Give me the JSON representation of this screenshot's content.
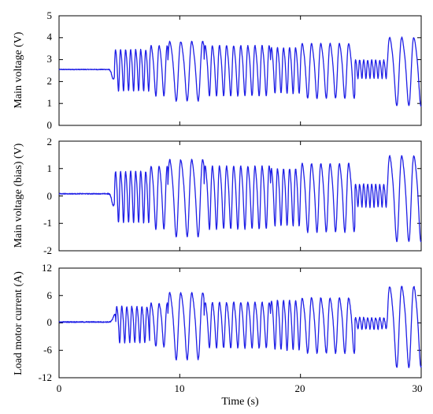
{
  "colors": {
    "series": "#1f1fe6",
    "axis": "#000000"
  },
  "chart_data": [
    {
      "type": "line",
      "ylabel": "Main voltage (V)",
      "xlabel": "",
      "xlim": [
        0,
        30
      ],
      "ylim": [
        0,
        5
      ],
      "xticks": [
        0,
        10,
        20,
        30
      ],
      "yticks": [
        0,
        1,
        2,
        3,
        4,
        5
      ],
      "ytick_labels": [
        "0",
        "1",
        "2",
        "3",
        "4",
        "5"
      ],
      "series": [
        {
          "values": {
            "flat_value": 2.55,
            "flat_until": 4.0,
            "dip_value": 2.1,
            "dip_time": 4.5,
            "center": 2.6,
            "segments": [
              {
                "t0": 4.6,
                "t1": 7.5,
                "freq": 2.4,
                "amp": 0.9
              },
              {
                "t0": 7.5,
                "t1": 9.0,
                "freq": 1.5,
                "amp": 1.1
              },
              {
                "t0": 9.0,
                "t1": 12.0,
                "freq": 1.1,
                "amp": 1.3
              },
              {
                "t0": 12.0,
                "t1": 17.5,
                "freq": 1.7,
                "amp": 1.1
              },
              {
                "t0": 17.5,
                "t1": 20.0,
                "freq": 2.0,
                "amp": 1.0
              },
              {
                "t0": 20.0,
                "t1": 24.5,
                "freq": 1.3,
                "amp": 1.2
              },
              {
                "t0": 24.5,
                "t1": 27.2,
                "freq": 3.0,
                "amp": 0.4
              },
              {
                "t0": 27.2,
                "t1": 30.0,
                "freq": 1.0,
                "amp": 1.5
              }
            ],
            "noise": 0.05
          }
        }
      ]
    },
    {
      "type": "line",
      "ylabel": "Main voltage (bias) (V)",
      "xlabel": "",
      "xlim": [
        0,
        30
      ],
      "ylim": [
        -2,
        2
      ],
      "xticks": [
        0,
        10,
        20,
        30
      ],
      "yticks": [
        -2,
        -1,
        0,
        1,
        2
      ],
      "ytick_labels": [
        "-2",
        "-1",
        "0",
        "1",
        "2"
      ],
      "series": [
        {
          "values": {
            "flat_value": 0.08,
            "flat_until": 4.0,
            "dip_value": -0.35,
            "dip_time": 4.5,
            "center": 0.05,
            "segments": [
              {
                "t0": 4.6,
                "t1": 7.5,
                "freq": 2.4,
                "amp": 0.9
              },
              {
                "t0": 7.5,
                "t1": 9.0,
                "freq": 1.5,
                "amp": 1.1
              },
              {
                "t0": 9.0,
                "t1": 12.0,
                "freq": 1.1,
                "amp": 1.35
              },
              {
                "t0": 12.0,
                "t1": 17.5,
                "freq": 1.7,
                "amp": 1.1
              },
              {
                "t0": 17.5,
                "t1": 20.0,
                "freq": 2.0,
                "amp": 1.0
              },
              {
                "t0": 20.0,
                "t1": 24.5,
                "freq": 1.3,
                "amp": 1.2
              },
              {
                "t0": 24.5,
                "t1": 27.2,
                "freq": 3.0,
                "amp": 0.4
              },
              {
                "t0": 27.2,
                "t1": 30.0,
                "freq": 1.0,
                "amp": 1.5
              }
            ],
            "noise": 0.05
          }
        }
      ]
    },
    {
      "type": "line",
      "ylabel": "Load motor current (A)",
      "xlabel": "Time (s)",
      "xlim": [
        0,
        30
      ],
      "ylim": [
        -12,
        12
      ],
      "xticks": [
        0,
        10,
        20,
        30
      ],
      "yticks": [
        -12,
        -6,
        0,
        6,
        12
      ],
      "ytick_labels": [
        "-12",
        "-6",
        "0",
        "6",
        "12"
      ],
      "series": [
        {
          "values": {
            "flat_value": 0.2,
            "flat_until": 4.2,
            "dip_value": 1.8,
            "dip_time": 4.6,
            "center": 0.0,
            "segments": [
              {
                "t0": 4.7,
                "t1": 7.5,
                "freq": 2.4,
                "amp": 3.8
              },
              {
                "t0": 7.5,
                "t1": 9.0,
                "freq": 1.5,
                "amp": 4.5
              },
              {
                "t0": 9.0,
                "t1": 12.0,
                "freq": 1.1,
                "amp": 7.0
              },
              {
                "t0": 12.0,
                "t1": 17.5,
                "freq": 1.7,
                "amp": 4.8
              },
              {
                "t0": 17.5,
                "t1": 20.0,
                "freq": 2.0,
                "amp": 5.2
              },
              {
                "t0": 20.0,
                "t1": 24.5,
                "freq": 1.3,
                "amp": 5.8
              },
              {
                "t0": 24.5,
                "t1": 27.2,
                "freq": 3.0,
                "amp": 1.2
              },
              {
                "t0": 27.2,
                "t1": 30.0,
                "freq": 1.0,
                "amp": 8.5
              }
            ],
            "noise": 0.35
          }
        }
      ]
    }
  ]
}
